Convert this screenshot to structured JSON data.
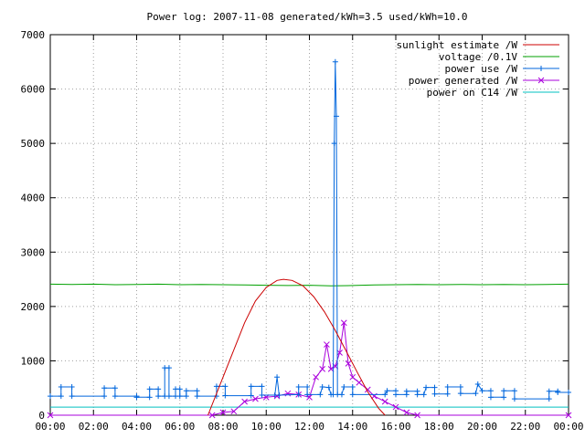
{
  "chart_data": {
    "type": "line",
    "title": "Power log: 2007-11-08 generated/kWh=3.5 used/kWh=10.0",
    "xlabel": "",
    "ylabel": "",
    "xlim": [
      0,
      24
    ],
    "ylim": [
      0,
      7000
    ],
    "xtick_labels": [
      "00:00",
      "02:00",
      "04:00",
      "06:00",
      "08:00",
      "10:00",
      "12:00",
      "14:00",
      "16:00",
      "18:00",
      "20:00",
      "22:00",
      "00:00"
    ],
    "ytick_labels": [
      "0",
      "1000",
      "2000",
      "3000",
      "4000",
      "5000",
      "6000",
      "7000"
    ],
    "grid": true,
    "legend_position": "top-right",
    "series": [
      {
        "name": "sunlight estimate /W",
        "color": "#cc0000",
        "marker": "none",
        "points": [
          [
            7.3,
            0
          ],
          [
            8,
            700
          ],
          [
            8.5,
            1200
          ],
          [
            9,
            1700
          ],
          [
            9.5,
            2100
          ],
          [
            10,
            2350
          ],
          [
            10.5,
            2480
          ],
          [
            10.8,
            2500
          ],
          [
            11.2,
            2480
          ],
          [
            11.7,
            2380
          ],
          [
            12.2,
            2180
          ],
          [
            12.7,
            1900
          ],
          [
            13.2,
            1560
          ],
          [
            13.7,
            1180
          ],
          [
            14.2,
            800
          ],
          [
            14.7,
            430
          ],
          [
            15.2,
            130
          ],
          [
            15.5,
            0
          ]
        ]
      },
      {
        "name": "voltage /0.1V",
        "color": "#00a000",
        "marker": "none",
        "points": [
          [
            0,
            2410
          ],
          [
            1,
            2405
          ],
          [
            2,
            2410
          ],
          [
            3,
            2400
          ],
          [
            4,
            2405
          ],
          [
            5,
            2410
          ],
          [
            6,
            2400
          ],
          [
            7,
            2405
          ],
          [
            8,
            2400
          ],
          [
            9,
            2395
          ],
          [
            10,
            2390
          ],
          [
            11,
            2385
          ],
          [
            12,
            2390
          ],
          [
            13,
            2380
          ],
          [
            14,
            2385
          ],
          [
            15,
            2395
          ],
          [
            16,
            2400
          ],
          [
            17,
            2405
          ],
          [
            18,
            2400
          ],
          [
            19,
            2405
          ],
          [
            20,
            2400
          ],
          [
            21,
            2405
          ],
          [
            22,
            2400
          ],
          [
            23,
            2405
          ],
          [
            24,
            2410
          ]
        ]
      },
      {
        "name": "power use /W",
        "color": "#0066dd",
        "marker": "plus",
        "points": [
          [
            0,
            350
          ],
          [
            0.5,
            350
          ],
          [
            0.5,
            520
          ],
          [
            1,
            520
          ],
          [
            1,
            350
          ],
          [
            2.5,
            350
          ],
          [
            2.5,
            500
          ],
          [
            3,
            500
          ],
          [
            3,
            350
          ],
          [
            4,
            350
          ],
          [
            4,
            330
          ],
          [
            4.6,
            330
          ],
          [
            4.6,
            480
          ],
          [
            5,
            480
          ],
          [
            5,
            350
          ],
          [
            5.3,
            350
          ],
          [
            5.3,
            870
          ],
          [
            5.5,
            870
          ],
          [
            5.5,
            350
          ],
          [
            5.8,
            350
          ],
          [
            5.8,
            480
          ],
          [
            6,
            480
          ],
          [
            6,
            350
          ],
          [
            6.3,
            350
          ],
          [
            6.3,
            450
          ],
          [
            6.8,
            450
          ],
          [
            6.8,
            350
          ],
          [
            7.7,
            350
          ],
          [
            7.7,
            530
          ],
          [
            8.1,
            530
          ],
          [
            8.1,
            360
          ],
          [
            9.3,
            360
          ],
          [
            9.3,
            530
          ],
          [
            9.8,
            530
          ],
          [
            9.8,
            370
          ],
          [
            10.4,
            370
          ],
          [
            10.5,
            700
          ],
          [
            10.6,
            370
          ],
          [
            11.5,
            380
          ],
          [
            11.5,
            520
          ],
          [
            11.9,
            520
          ],
          [
            11.9,
            380
          ],
          [
            12.5,
            380
          ],
          [
            12.6,
            520
          ],
          [
            12.9,
            510
          ],
          [
            13,
            380
          ],
          [
            13.1,
            380
          ],
          [
            13.15,
            5000
          ],
          [
            13.2,
            6500
          ],
          [
            13.25,
            5500
          ],
          [
            13.3,
            380
          ],
          [
            13.5,
            380
          ],
          [
            13.6,
            520
          ],
          [
            14,
            520
          ],
          [
            14,
            380
          ],
          [
            15.5,
            380
          ],
          [
            15.6,
            450
          ],
          [
            16,
            450
          ],
          [
            16,
            380
          ],
          [
            16.5,
            380
          ],
          [
            16.5,
            440
          ],
          [
            17,
            440
          ],
          [
            17,
            380
          ],
          [
            17.3,
            380
          ],
          [
            17.4,
            510
          ],
          [
            17.8,
            510
          ],
          [
            17.8,
            390
          ],
          [
            18.4,
            390
          ],
          [
            18.4,
            520
          ],
          [
            19,
            520
          ],
          [
            19,
            400
          ],
          [
            19.7,
            400
          ],
          [
            19.8,
            570
          ],
          [
            20,
            450
          ],
          [
            20.4,
            450
          ],
          [
            20.4,
            330
          ],
          [
            21,
            330
          ],
          [
            21,
            450
          ],
          [
            21.5,
            450
          ],
          [
            21.5,
            300
          ],
          [
            23.1,
            300
          ],
          [
            23.1,
            440
          ],
          [
            23.5,
            440
          ],
          [
            23.5,
            420
          ],
          [
            24,
            420
          ]
        ]
      },
      {
        "name": "power generated /W",
        "color": "#aa00dd",
        "marker": "cross",
        "points": [
          [
            0,
            0
          ],
          [
            7.5,
            0
          ],
          [
            8,
            50
          ],
          [
            8.5,
            70
          ],
          [
            9,
            250
          ],
          [
            9.5,
            300
          ],
          [
            10,
            330
          ],
          [
            10.5,
            350
          ],
          [
            11,
            400
          ],
          [
            11.5,
            380
          ],
          [
            12,
            330
          ],
          [
            12.3,
            700
          ],
          [
            12.6,
            850
          ],
          [
            12.8,
            1300
          ],
          [
            13,
            850
          ],
          [
            13.2,
            900
          ],
          [
            13.4,
            1150
          ],
          [
            13.6,
            1700
          ],
          [
            13.8,
            950
          ],
          [
            14,
            700
          ],
          [
            14.3,
            600
          ],
          [
            14.7,
            470
          ],
          [
            15,
            350
          ],
          [
            15.5,
            250
          ],
          [
            16,
            150
          ],
          [
            16.5,
            50
          ],
          [
            17,
            0
          ],
          [
            24,
            0
          ]
        ]
      },
      {
        "name": "power on C14 /W",
        "color": "#00c0c0",
        "marker": "none",
        "points": [
          [
            0,
            150
          ],
          [
            24,
            150
          ]
        ]
      }
    ]
  }
}
